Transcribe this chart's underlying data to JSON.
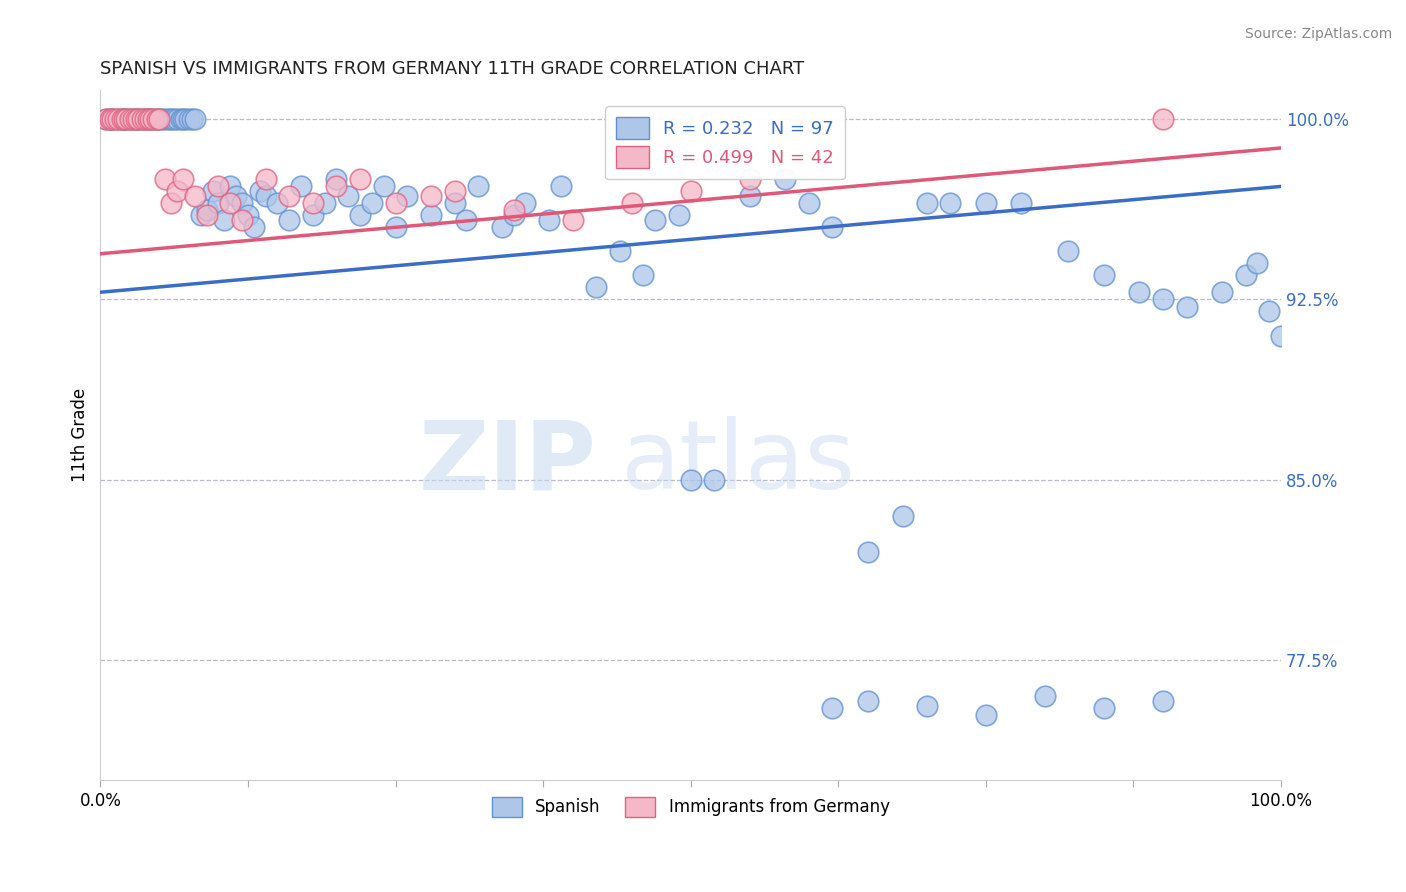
{
  "title": "SPANISH VS IMMIGRANTS FROM GERMANY 11TH GRADE CORRELATION CHART",
  "source": "Source: ZipAtlas.com",
  "ylabel": "11th Grade",
  "blue_label": "Spanish",
  "pink_label": "Immigrants from Germany",
  "blue_R": 0.232,
  "blue_N": 97,
  "pink_R": 0.499,
  "pink_N": 42,
  "blue_color": "#aec6e8",
  "pink_color": "#f4b8c8",
  "blue_edge_color": "#6090d0",
  "pink_edge_color": "#e06080",
  "blue_line_color": "#3a6cc8",
  "pink_line_color": "#e05878",
  "xmin": 0.0,
  "xmax": 1.0,
  "ymin": 0.725,
  "ymax": 1.012,
  "yticks": [
    0.775,
    0.85,
    0.925,
    1.0
  ],
  "ytick_labels": [
    "77.5%",
    "85.0%",
    "92.5%",
    "100.0%"
  ],
  "xticks": [
    0.0,
    0.125,
    0.25,
    0.375,
    0.5,
    0.625,
    0.75,
    0.875,
    1.0
  ],
  "grid_color": "#bbbbcc",
  "background_color": "#ffffff",
  "blue_scatter_x": [
    0.005,
    0.008,
    0.01,
    0.015,
    0.018,
    0.02,
    0.022,
    0.025,
    0.028,
    0.03,
    0.032,
    0.035,
    0.038,
    0.04,
    0.042,
    0.045,
    0.048,
    0.05,
    0.052,
    0.055,
    0.058,
    0.06,
    0.062,
    0.065,
    0.068,
    0.07,
    0.072,
    0.075,
    0.078,
    0.08,
    0.085,
    0.09,
    0.095,
    0.1,
    0.105,
    0.11,
    0.115,
    0.12,
    0.125,
    0.13,
    0.135,
    0.14,
    0.15,
    0.16,
    0.17,
    0.18,
    0.19,
    0.2,
    0.21,
    0.22,
    0.23,
    0.24,
    0.25,
    0.26,
    0.28,
    0.3,
    0.31,
    0.32,
    0.34,
    0.35,
    0.36,
    0.38,
    0.39,
    0.42,
    0.44,
    0.46,
    0.47,
    0.49,
    0.5,
    0.52,
    0.55,
    0.58,
    0.6,
    0.62,
    0.65,
    0.68,
    0.7,
    0.72,
    0.75,
    0.78,
    0.82,
    0.85,
    0.88,
    0.9,
    0.92,
    0.95,
    0.97,
    0.98,
    0.99,
    1.0,
    0.62,
    0.65,
    0.7,
    0.75,
    0.8,
    0.85,
    0.9
  ],
  "blue_scatter_y": [
    1.0,
    1.0,
    1.0,
    1.0,
    1.0,
    1.0,
    1.0,
    1.0,
    1.0,
    1.0,
    1.0,
    1.0,
    1.0,
    1.0,
    1.0,
    1.0,
    1.0,
    1.0,
    1.0,
    1.0,
    1.0,
    1.0,
    1.0,
    1.0,
    1.0,
    1.0,
    1.0,
    1.0,
    1.0,
    1.0,
    0.96,
    0.962,
    0.97,
    0.965,
    0.958,
    0.972,
    0.968,
    0.965,
    0.96,
    0.955,
    0.97,
    0.968,
    0.965,
    0.958,
    0.972,
    0.96,
    0.965,
    0.975,
    0.968,
    0.96,
    0.965,
    0.972,
    0.955,
    0.968,
    0.96,
    0.965,
    0.958,
    0.972,
    0.955,
    0.96,
    0.965,
    0.958,
    0.972,
    0.93,
    0.945,
    0.935,
    0.958,
    0.96,
    0.85,
    0.85,
    0.968,
    0.975,
    0.965,
    0.955,
    0.82,
    0.835,
    0.965,
    0.965,
    0.965,
    0.965,
    0.945,
    0.935,
    0.928,
    0.925,
    0.922,
    0.928,
    0.935,
    0.94,
    0.92,
    0.91,
    0.755,
    0.758,
    0.756,
    0.752,
    0.76,
    0.755,
    0.758
  ],
  "pink_scatter_x": [
    0.005,
    0.008,
    0.01,
    0.012,
    0.015,
    0.018,
    0.02,
    0.022,
    0.025,
    0.028,
    0.03,
    0.032,
    0.035,
    0.038,
    0.04,
    0.042,
    0.045,
    0.048,
    0.05,
    0.055,
    0.06,
    0.065,
    0.07,
    0.08,
    0.09,
    0.1,
    0.11,
    0.12,
    0.14,
    0.16,
    0.18,
    0.2,
    0.22,
    0.25,
    0.28,
    0.3,
    0.35,
    0.4,
    0.45,
    0.5,
    0.55,
    0.9
  ],
  "pink_scatter_y": [
    1.0,
    1.0,
    1.0,
    1.0,
    1.0,
    1.0,
    1.0,
    1.0,
    1.0,
    1.0,
    1.0,
    1.0,
    1.0,
    1.0,
    1.0,
    1.0,
    1.0,
    1.0,
    1.0,
    0.975,
    0.965,
    0.97,
    0.975,
    0.968,
    0.96,
    0.972,
    0.965,
    0.958,
    0.975,
    0.968,
    0.965,
    0.972,
    0.975,
    0.965,
    0.968,
    0.97,
    0.962,
    0.958,
    0.965,
    0.97,
    0.975,
    1.0
  ],
  "blue_line_x": [
    0.0,
    1.0
  ],
  "blue_line_y": [
    0.928,
    0.972
  ],
  "pink_line_x": [
    0.0,
    1.0
  ],
  "pink_line_y": [
    0.944,
    0.988
  ]
}
